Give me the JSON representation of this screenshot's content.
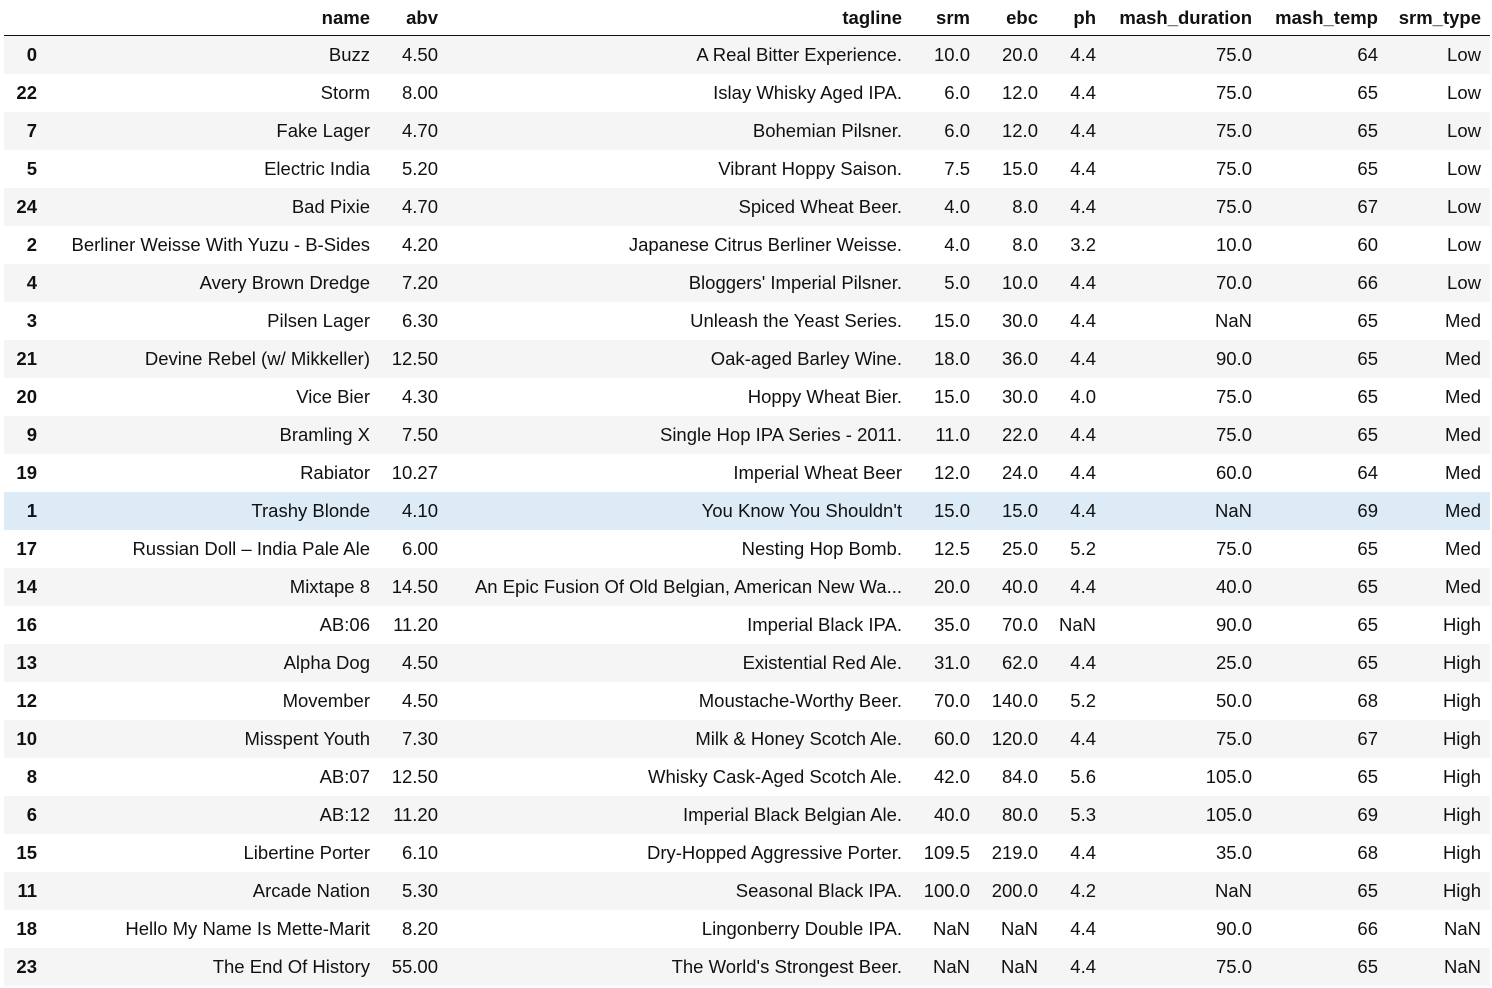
{
  "table": {
    "columns": [
      {
        "key": "name",
        "label": "name"
      },
      {
        "key": "abv",
        "label": "abv"
      },
      {
        "key": "tagline",
        "label": "tagline"
      },
      {
        "key": "srm",
        "label": "srm"
      },
      {
        "key": "ebc",
        "label": "ebc"
      },
      {
        "key": "ph",
        "label": "ph"
      },
      {
        "key": "mash_duration",
        "label": "mash_duration"
      },
      {
        "key": "mash_temp",
        "label": "mash_temp"
      },
      {
        "key": "srm_type",
        "label": "srm_type"
      }
    ],
    "highlight_color": "#ddebf7",
    "stripe_color": "#f5f5f5",
    "highlighted_index": "1",
    "rows": [
      {
        "index": "0",
        "name": "Buzz",
        "abv": "4.50",
        "tagline": "A Real Bitter Experience.",
        "srm": "10.0",
        "ebc": "20.0",
        "ph": "4.4",
        "mash_duration": "75.0",
        "mash_temp": "64",
        "srm_type": "Low"
      },
      {
        "index": "22",
        "name": "Storm",
        "abv": "8.00",
        "tagline": "Islay Whisky Aged IPA.",
        "srm": "6.0",
        "ebc": "12.0",
        "ph": "4.4",
        "mash_duration": "75.0",
        "mash_temp": "65",
        "srm_type": "Low"
      },
      {
        "index": "7",
        "name": "Fake Lager",
        "abv": "4.70",
        "tagline": "Bohemian Pilsner.",
        "srm": "6.0",
        "ebc": "12.0",
        "ph": "4.4",
        "mash_duration": "75.0",
        "mash_temp": "65",
        "srm_type": "Low"
      },
      {
        "index": "5",
        "name": "Electric India",
        "abv": "5.20",
        "tagline": "Vibrant Hoppy Saison.",
        "srm": "7.5",
        "ebc": "15.0",
        "ph": "4.4",
        "mash_duration": "75.0",
        "mash_temp": "65",
        "srm_type": "Low"
      },
      {
        "index": "24",
        "name": "Bad Pixie",
        "abv": "4.70",
        "tagline": "Spiced Wheat Beer.",
        "srm": "4.0",
        "ebc": "8.0",
        "ph": "4.4",
        "mash_duration": "75.0",
        "mash_temp": "67",
        "srm_type": "Low"
      },
      {
        "index": "2",
        "name": "Berliner Weisse With Yuzu - B-Sides",
        "abv": "4.20",
        "tagline": "Japanese Citrus Berliner Weisse.",
        "srm": "4.0",
        "ebc": "8.0",
        "ph": "3.2",
        "mash_duration": "10.0",
        "mash_temp": "60",
        "srm_type": "Low"
      },
      {
        "index": "4",
        "name": "Avery Brown Dredge",
        "abv": "7.20",
        "tagline": "Bloggers' Imperial Pilsner.",
        "srm": "5.0",
        "ebc": "10.0",
        "ph": "4.4",
        "mash_duration": "70.0",
        "mash_temp": "66",
        "srm_type": "Low"
      },
      {
        "index": "3",
        "name": "Pilsen Lager",
        "abv": "6.30",
        "tagline": "Unleash the Yeast Series.",
        "srm": "15.0",
        "ebc": "30.0",
        "ph": "4.4",
        "mash_duration": "NaN",
        "mash_temp": "65",
        "srm_type": "Med"
      },
      {
        "index": "21",
        "name": "Devine Rebel (w/ Mikkeller)",
        "abv": "12.50",
        "tagline": "Oak-aged Barley Wine.",
        "srm": "18.0",
        "ebc": "36.0",
        "ph": "4.4",
        "mash_duration": "90.0",
        "mash_temp": "65",
        "srm_type": "Med"
      },
      {
        "index": "20",
        "name": "Vice Bier",
        "abv": "4.30",
        "tagline": "Hoppy Wheat Bier.",
        "srm": "15.0",
        "ebc": "30.0",
        "ph": "4.0",
        "mash_duration": "75.0",
        "mash_temp": "65",
        "srm_type": "Med"
      },
      {
        "index": "9",
        "name": "Bramling X",
        "abv": "7.50",
        "tagline": "Single Hop IPA Series - 2011.",
        "srm": "11.0",
        "ebc": "22.0",
        "ph": "4.4",
        "mash_duration": "75.0",
        "mash_temp": "65",
        "srm_type": "Med"
      },
      {
        "index": "19",
        "name": "Rabiator",
        "abv": "10.27",
        "tagline": "Imperial Wheat Beer",
        "srm": "12.0",
        "ebc": "24.0",
        "ph": "4.4",
        "mash_duration": "60.0",
        "mash_temp": "64",
        "srm_type": "Med"
      },
      {
        "index": "1",
        "name": "Trashy Blonde",
        "abv": "4.10",
        "tagline": "You Know You Shouldn't",
        "srm": "15.0",
        "ebc": "15.0",
        "ph": "4.4",
        "mash_duration": "NaN",
        "mash_temp": "69",
        "srm_type": "Med"
      },
      {
        "index": "17",
        "name": "Russian Doll – India Pale Ale",
        "abv": "6.00",
        "tagline": "Nesting Hop Bomb.",
        "srm": "12.5",
        "ebc": "25.0",
        "ph": "5.2",
        "mash_duration": "75.0",
        "mash_temp": "65",
        "srm_type": "Med"
      },
      {
        "index": "14",
        "name": "Mixtape 8",
        "abv": "14.50",
        "tagline": "An Epic Fusion Of Old Belgian, American New Wa...",
        "srm": "20.0",
        "ebc": "40.0",
        "ph": "4.4",
        "mash_duration": "40.0",
        "mash_temp": "65",
        "srm_type": "Med"
      },
      {
        "index": "16",
        "name": "AB:06",
        "abv": "11.20",
        "tagline": "Imperial Black IPA.",
        "srm": "35.0",
        "ebc": "70.0",
        "ph": "NaN",
        "mash_duration": "90.0",
        "mash_temp": "65",
        "srm_type": "High"
      },
      {
        "index": "13",
        "name": "Alpha Dog",
        "abv": "4.50",
        "tagline": "Existential Red Ale.",
        "srm": "31.0",
        "ebc": "62.0",
        "ph": "4.4",
        "mash_duration": "25.0",
        "mash_temp": "65",
        "srm_type": "High"
      },
      {
        "index": "12",
        "name": "Movember",
        "abv": "4.50",
        "tagline": "Moustache-Worthy Beer.",
        "srm": "70.0",
        "ebc": "140.0",
        "ph": "5.2",
        "mash_duration": "50.0",
        "mash_temp": "68",
        "srm_type": "High"
      },
      {
        "index": "10",
        "name": "Misspent Youth",
        "abv": "7.30",
        "tagline": "Milk & Honey Scotch Ale.",
        "srm": "60.0",
        "ebc": "120.0",
        "ph": "4.4",
        "mash_duration": "75.0",
        "mash_temp": "67",
        "srm_type": "High"
      },
      {
        "index": "8",
        "name": "AB:07",
        "abv": "12.50",
        "tagline": "Whisky Cask-Aged Scotch Ale.",
        "srm": "42.0",
        "ebc": "84.0",
        "ph": "5.6",
        "mash_duration": "105.0",
        "mash_temp": "65",
        "srm_type": "High"
      },
      {
        "index": "6",
        "name": "AB:12",
        "abv": "11.20",
        "tagline": "Imperial Black Belgian Ale.",
        "srm": "40.0",
        "ebc": "80.0",
        "ph": "5.3",
        "mash_duration": "105.0",
        "mash_temp": "69",
        "srm_type": "High"
      },
      {
        "index": "15",
        "name": "Libertine Porter",
        "abv": "6.10",
        "tagline": "Dry-Hopped Aggressive Porter.",
        "srm": "109.5",
        "ebc": "219.0",
        "ph": "4.4",
        "mash_duration": "35.0",
        "mash_temp": "68",
        "srm_type": "High"
      },
      {
        "index": "11",
        "name": "Arcade Nation",
        "abv": "5.30",
        "tagline": "Seasonal Black IPA.",
        "srm": "100.0",
        "ebc": "200.0",
        "ph": "4.2",
        "mash_duration": "NaN",
        "mash_temp": "65",
        "srm_type": "High"
      },
      {
        "index": "18",
        "name": "Hello My Name Is Mette-Marit",
        "abv": "8.20",
        "tagline": "Lingonberry Double IPA.",
        "srm": "NaN",
        "ebc": "NaN",
        "ph": "4.4",
        "mash_duration": "90.0",
        "mash_temp": "66",
        "srm_type": "NaN"
      },
      {
        "index": "23",
        "name": "The End Of History",
        "abv": "55.00",
        "tagline": "The World's Strongest Beer.",
        "srm": "NaN",
        "ebc": "NaN",
        "ph": "4.4",
        "mash_duration": "75.0",
        "mash_temp": "65",
        "srm_type": "NaN"
      }
    ]
  }
}
